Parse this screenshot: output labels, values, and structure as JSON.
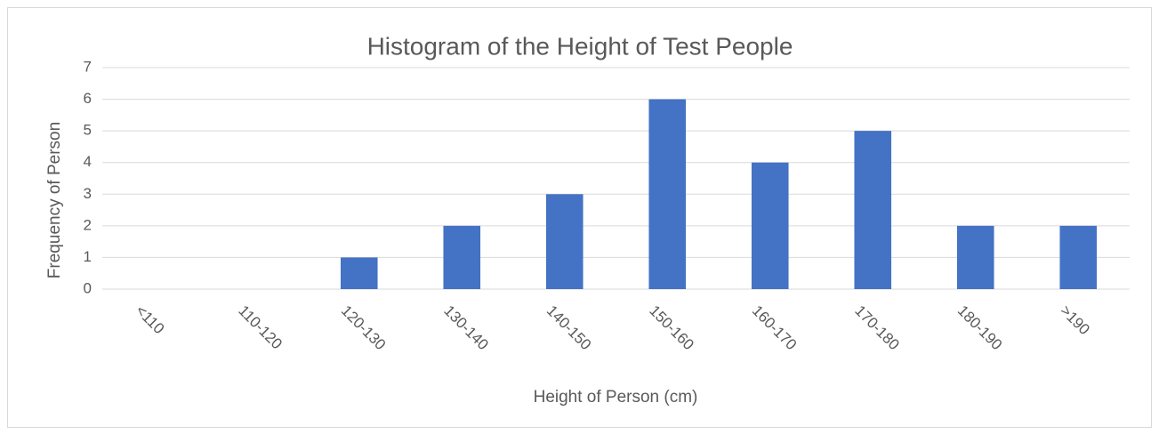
{
  "chart_data": {
    "type": "bar",
    "title": "Histogram of the Height of Test People",
    "x_label": "Height of Person (cm)",
    "y_label": "Frequency of Person",
    "categories": [
      "<110",
      "110-120",
      "120-130",
      "130-140",
      "140-150",
      "150-160",
      "160-170",
      "170-180",
      "180-190",
      ">190"
    ],
    "values": [
      0,
      0,
      1,
      2,
      3,
      6,
      4,
      5,
      2,
      2
    ],
    "color": "#4472c4",
    "ylim": [
      0,
      7
    ],
    "yticks": [
      0,
      1,
      2,
      3,
      4,
      5,
      6,
      7
    ],
    "grid": true
  }
}
